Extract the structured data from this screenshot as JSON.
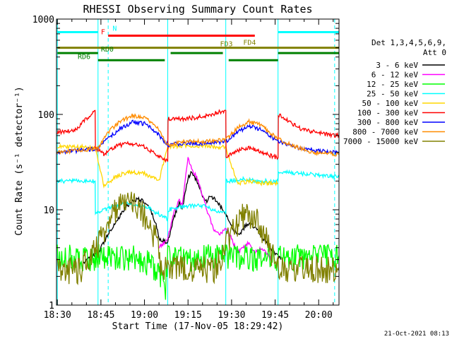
{
  "chart_data": {
    "type": "line",
    "title": "RHESSI Observing Summary Count Rates",
    "xlabel": "Start Time (17-Nov-05 18:29:42)",
    "ylabel": "Count Rate (s⁻¹ detector⁻¹)",
    "x_unit": "minutes after 18:30",
    "xlim": [
      -0.3,
      97
    ],
    "ylim": [
      1,
      1000
    ],
    "yscale": "log",
    "x_ticks": [
      {
        "x": 0,
        "label": "18:30"
      },
      {
        "x": 15,
        "label": "18:45"
      },
      {
        "x": 30,
        "label": "19:00"
      },
      {
        "x": 45,
        "label": "19:15"
      },
      {
        "x": 60,
        "label": "19:30"
      },
      {
        "x": 75,
        "label": "19:45"
      },
      {
        "x": 90,
        "label": "20:00"
      }
    ],
    "y_ticks": [
      {
        "y": 1,
        "label": "1"
      },
      {
        "y": 10,
        "label": "10"
      },
      {
        "y": 100,
        "label": "100"
      },
      {
        "y": 1000,
        "label": "1000"
      }
    ],
    "legend_header": [
      "Det 1,3,4,5,6,9,",
      "Att 0"
    ],
    "series": [
      {
        "name": "3 - 6 keV",
        "color": "#000000",
        "x": [
          9,
          14,
          18,
          22,
          24,
          26,
          28,
          30,
          32,
          34,
          35,
          38,
          40,
          42,
          43,
          44,
          45,
          46,
          47,
          49,
          51,
          53,
          55,
          57,
          59,
          61,
          63,
          65,
          67,
          69,
          71,
          73,
          75,
          77
        ],
        "y": [
          2.8,
          3.5,
          6,
          9,
          11,
          12.5,
          13,
          12,
          10,
          7,
          5,
          4.5,
          8,
          12,
          10,
          15,
          22,
          24,
          23,
          17,
          12,
          14,
          12,
          10,
          8,
          6,
          5.5,
          7,
          7,
          6,
          5,
          4,
          3.5,
          3
        ]
      },
      {
        "name": "6 - 12 keV",
        "color": "#ff00ff",
        "x": [
          35,
          37,
          38,
          40,
          42,
          43,
          44,
          45,
          46,
          47,
          48,
          50,
          52,
          54,
          56,
          58,
          60,
          62,
          64,
          66,
          68,
          70,
          72,
          74
        ],
        "y": [
          4,
          4.5,
          5,
          9,
          13,
          11,
          20,
          35,
          28,
          25,
          22,
          14,
          9,
          6,
          5.5,
          6.5,
          5,
          3.5,
          4,
          4.5,
          3.5,
          4,
          3.5,
          3
        ]
      },
      {
        "name": "12 - 25 keV",
        "color": "#00ff00",
        "x": [
          0,
          10,
          20,
          30,
          36,
          37,
          38,
          40,
          50,
          60,
          70,
          76,
          78,
          97
        ],
        "y": [
          3.3,
          3.3,
          3.3,
          3.2,
          2.0,
          1.2,
          3.3,
          3.3,
          3.3,
          3.3,
          3.3,
          3.3,
          3.3,
          3.3
        ]
      },
      {
        "name": "25 - 50 keV",
        "color": "#00ffff",
        "x": [
          0,
          6,
          13,
          13.1,
          18,
          24,
          30,
          35,
          38,
          38.1,
          44,
          50,
          58,
          58.1,
          64,
          70,
          76,
          76.1,
          84,
          92,
          97
        ],
        "y": [
          20,
          20,
          20,
          9,
          10.5,
          11.5,
          11,
          9,
          8,
          10,
          11,
          11,
          9,
          20,
          21,
          20,
          20,
          25,
          24,
          23,
          22
        ]
      },
      {
        "name": "50 - 100 keV",
        "color": "#ffd700",
        "x": [
          0,
          6,
          13,
          16,
          20,
          24,
          30,
          35,
          38,
          44,
          50,
          58,
          62,
          66,
          70,
          76
        ],
        "y": [
          46,
          46,
          45,
          18,
          22,
          25,
          24,
          20,
          46,
          47,
          47,
          45,
          19,
          20,
          19,
          19
        ]
      },
      {
        "name": "100 - 300 keV",
        "color": "#ff0000",
        "x": [
          0,
          6,
          13,
          13.1,
          16,
          20,
          24,
          30,
          35,
          38,
          38.1,
          44,
          50,
          58,
          58.1,
          62,
          66,
          70,
          76,
          76.1,
          84,
          92,
          97
        ],
        "y": [
          65,
          68,
          110,
          45,
          38,
          46,
          50,
          46,
          36,
          32,
          90,
          90,
          95,
          110,
          36,
          42,
          45,
          40,
          35,
          100,
          70,
          62,
          60
        ]
      },
      {
        "name": "300 - 800 keV",
        "color": "#0000ff",
        "x": [
          0,
          8,
          14,
          18,
          22,
          26,
          30,
          34,
          38,
          44,
          50,
          58,
          62,
          66,
          70,
          76,
          82,
          88,
          97
        ],
        "y": [
          40,
          42,
          44,
          58,
          72,
          83,
          80,
          65,
          48,
          50,
          50,
          52,
          65,
          76,
          70,
          52,
          45,
          42,
          40
        ]
      },
      {
        "name": "800 - 7000 keV",
        "color": "#ff8c00",
        "x": [
          0,
          8,
          14,
          18,
          22,
          26,
          30,
          34,
          38,
          44,
          50,
          58,
          62,
          66,
          70,
          76,
          82,
          88,
          97
        ],
        "y": [
          40,
          42,
          44,
          68,
          86,
          98,
          92,
          75,
          48,
          52,
          52,
          54,
          72,
          84,
          78,
          55,
          46,
          40,
          38
        ]
      },
      {
        "name": "7000 - 15000 keV",
        "color": "#808000",
        "x": [
          0,
          4,
          8,
          10,
          12,
          14,
          16,
          18,
          20,
          22,
          24,
          26,
          28,
          30,
          32,
          34,
          35,
          36,
          38,
          40,
          44,
          50,
          54,
          56,
          58,
          60,
          62,
          64,
          66,
          68,
          70,
          72,
          74,
          76,
          80,
          86,
          92,
          97
        ],
        "y": [
          2.4,
          2.4,
          2.4,
          3,
          3.5,
          4.5,
          6,
          8,
          10,
          12,
          13,
          12.5,
          11,
          9,
          7,
          5,
          3.5,
          2.5,
          2.5,
          2.5,
          2.5,
          2.5,
          2.5,
          3,
          4.5,
          6,
          7.5,
          9,
          9.5,
          8.5,
          7,
          5,
          3.5,
          2.5,
          2.5,
          2.5,
          2.5,
          2.5
        ]
      }
    ],
    "annotations": [
      {
        "label": "N",
        "color": "#00ffff",
        "type": "bar",
        "segments": [
          [
            0,
            14
          ],
          [
            76,
            97
          ]
        ],
        "y": 730,
        "label_x": 19
      },
      {
        "label": "F",
        "color": "#ff0000",
        "type": "bar",
        "segments": [
          [
            17.5,
            68
          ]
        ],
        "y": 670,
        "label_x": 15
      },
      {
        "label": "FD3",
        "color": "#808000",
        "type": "bar",
        "segments": [
          [
            0,
            97
          ]
        ],
        "y": 500,
        "label_x": 56
      },
      {
        "label": "FD4",
        "color": "#808000",
        "type": "text",
        "segments": [],
        "y": 520,
        "label_x": 64
      },
      {
        "label": "RD0",
        "color": "#008000",
        "type": "bar",
        "segments": [
          [
            0,
            14
          ],
          [
            39,
            57
          ],
          [
            76,
            97
          ]
        ],
        "y": 440,
        "label_x": 15
      },
      {
        "label": "RD6",
        "color": "#008000",
        "type": "bar",
        "segments": [
          [
            14,
            37
          ],
          [
            59,
            76
          ]
        ],
        "y": 370,
        "label_x": 7
      }
    ],
    "vlines": [
      {
        "x": 0,
        "style": "solid"
      },
      {
        "x": 14,
        "style": "solid"
      },
      {
        "x": 17.5,
        "style": "dashed"
      },
      {
        "x": 38,
        "style": "solid"
      },
      {
        "x": 58,
        "style": "solid"
      },
      {
        "x": 76,
        "style": "solid"
      },
      {
        "x": 95.5,
        "style": "dashed"
      }
    ],
    "vline_color": "#00ffff",
    "footer": "21-Oct-2021 08:13"
  }
}
